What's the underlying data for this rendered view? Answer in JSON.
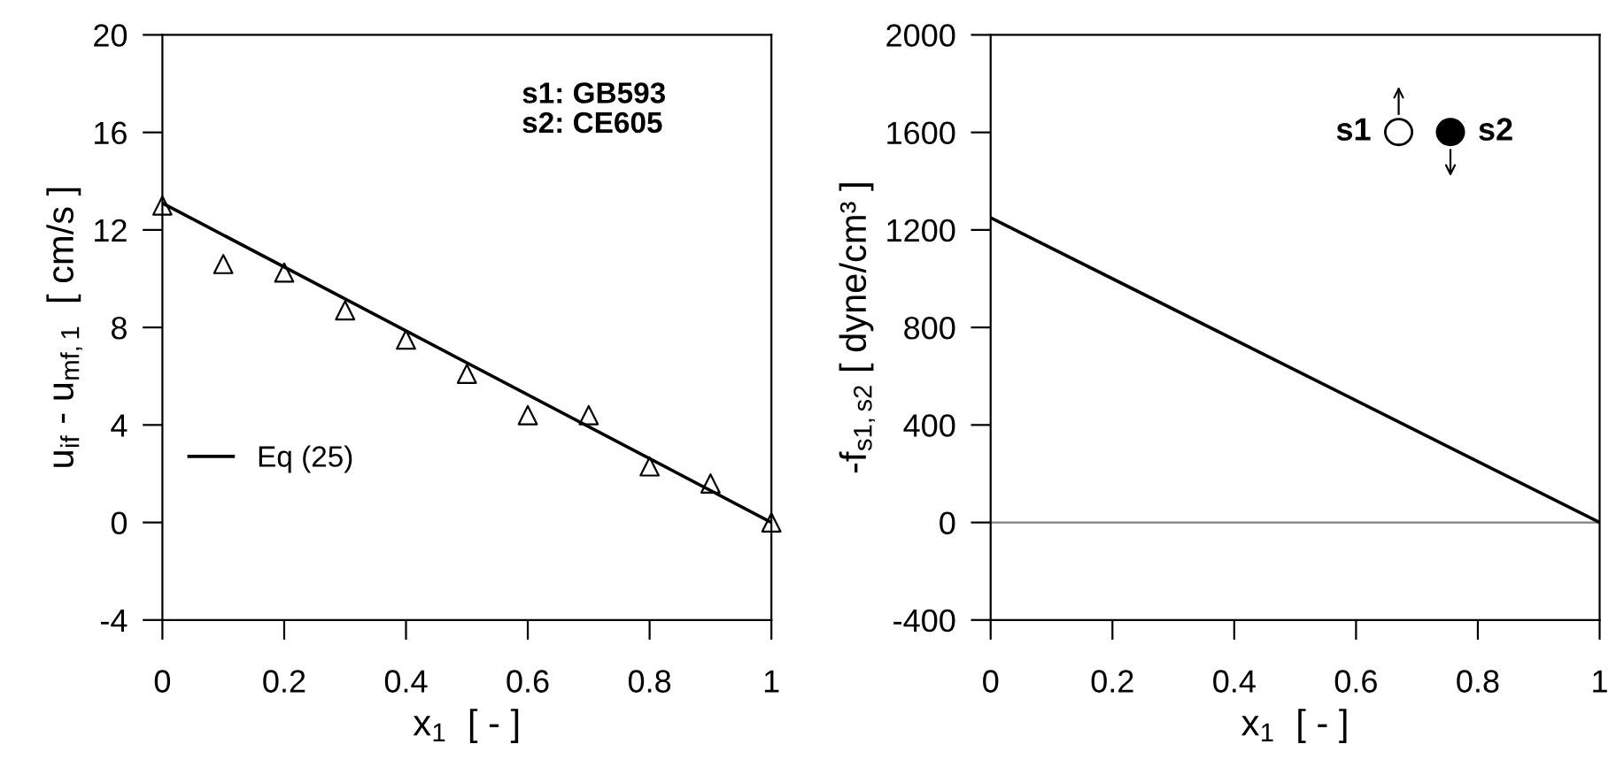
{
  "chart_data": [
    {
      "type": "scatter",
      "xlabel": "x$_{1}$  [ - ]",
      "ylabel": "u$_{if}$ - u$_{mf,1}$  [ cm/s ]",
      "annotations": [
        "s1: GB593\ns2: CE605"
      ],
      "xlim": [
        0,
        1
      ],
      "ylim": [
        -4,
        20
      ],
      "xticks": [
        0,
        0.2,
        0.4,
        0.6,
        0.8,
        1
      ],
      "yticks": [
        -4,
        0,
        4,
        8,
        12,
        16,
        20
      ],
      "grid": false,
      "legend": "left",
      "series": [
        {
          "marker": "triangle",
          "color": "#000000",
          "x": [
            0,
            0.1,
            0.2,
            0.3,
            0.4,
            0.5,
            0.6,
            0.7,
            0.8,
            0.9,
            1
          ],
          "values": [
            13.0,
            10.6,
            10.25,
            8.7,
            7.5,
            6.1,
            4.4,
            4.4,
            2.3,
            1.6,
            0
          ]
        },
        {
          "type": "line",
          "name": "Eq (25)",
          "color": "#000000",
          "line_style": "solid",
          "marker": "none",
          "x": [
            0,
            1
          ],
          "values": [
            13.1,
            0
          ]
        }
      ]
    },
    {
      "type": "line",
      "xlabel": "x$_{1}$  [ - ]",
      "ylabel": "-f$_{s1,s2}$ [ dyne/cm³ ]",
      "annotations": [
        "s1",
        "s2"
      ],
      "xlim": [
        0,
        1
      ],
      "ylim": [
        -400,
        2000
      ],
      "xticks": [
        0,
        0.2,
        0.4,
        0.6,
        0.8,
        1
      ],
      "yticks": [
        -400,
        0,
        400,
        800,
        1200,
        1600,
        2000
      ],
      "grid": false,
      "legend": false,
      "ref_lines": [
        {
          "axis": "y",
          "value": 0,
          "color": "#808080"
        }
      ],
      "series": [
        {
          "color": "#000000",
          "line_style": "solid",
          "marker": "none",
          "x": [
            0,
            1
          ],
          "values": [
            1250,
            0
          ]
        }
      ]
    }
  ]
}
